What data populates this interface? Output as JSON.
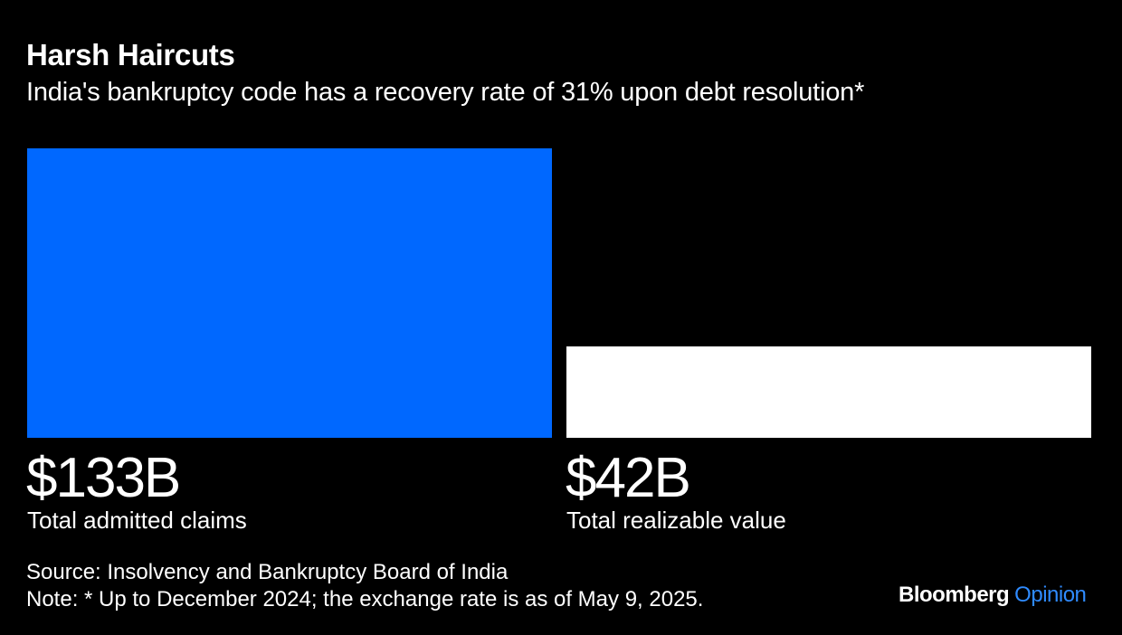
{
  "title": "Harsh Haircuts",
  "subtitle": "India's bankruptcy code has a recovery rate of 31% upon debt resolution*",
  "source": "Source: Insolvency and Bankruptcy Board of India",
  "note": "Note: * Up to December 2024; the exchange rate is as of May 9, 2025.",
  "logo": {
    "brand": "Bloomberg",
    "product": "Opinion"
  },
  "colors": {
    "background": "#000000",
    "total_claims": "#0068ff",
    "realizable_value": "#ffffff",
    "text": "#ffffff",
    "logo_accent": "#2f8bff"
  },
  "chart_data": {
    "type": "bar",
    "categories": [
      "Total admitted claims",
      "Total realizable value"
    ],
    "values": [
      133,
      42
    ],
    "units": "B",
    "value_labels": [
      "$133B",
      "$42B"
    ],
    "title": "Harsh Haircuts",
    "subtitle": "India's bankruptcy code has a recovery rate of 31% upon debt resolution*",
    "ylim": [
      0,
      133
    ],
    "grid": false,
    "legend": "none"
  }
}
